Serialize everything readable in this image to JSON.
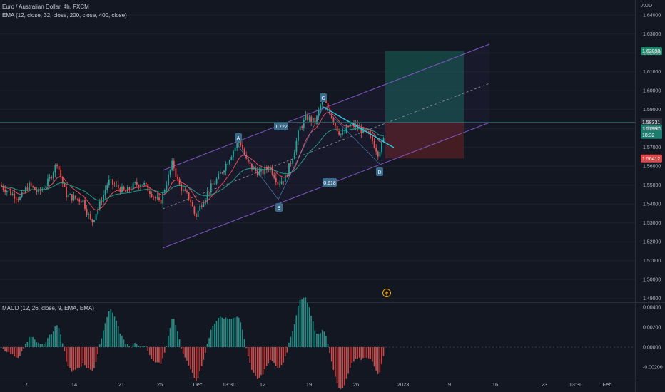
{
  "header": {
    "symbol_line": "Euro / Australian Dollar, 4h, FXCM",
    "ema_line": "EMA (12, close, 32, close, 200, close, 400, close)",
    "currency": "AUD"
  },
  "macd": {
    "legend": "MACD (12, 26, close, 9, EMA, EMA)",
    "ticks": [
      "0.00400",
      "0.00200",
      "0.00000",
      "-0.00200"
    ]
  },
  "chart_data": {
    "type": "candlestick",
    "symbol": "EURAUD",
    "timeframe": "4h",
    "y_ticks": [
      "1.64000",
      "1.63000",
      "1.62000",
      "1.61000",
      "1.60000",
      "1.59000",
      "1.58000",
      "1.57000",
      "1.56000",
      "1.55000",
      "1.54000",
      "1.53000",
      "1.52000",
      "1.51000",
      "1.50000",
      "1.49000"
    ],
    "ylim": [
      1.488,
      1.648
    ],
    "x_ticks": [
      "7",
      "14",
      "21",
      "25",
      "Dec",
      "13:30",
      "12",
      "19",
      "26",
      "2023",
      "9",
      "16",
      "23",
      "13:30",
      "Feb"
    ],
    "price_path": [
      [
        0,
        1.55
      ],
      [
        14,
        1.546
      ],
      [
        28,
        1.543
      ],
      [
        40,
        1.55
      ],
      [
        54,
        1.546
      ],
      [
        68,
        1.552
      ],
      [
        80,
        1.562
      ],
      [
        92,
        1.545
      ],
      [
        104,
        1.543
      ],
      [
        116,
        1.542
      ],
      [
        128,
        1.53
      ],
      [
        140,
        1.54
      ],
      [
        152,
        1.552
      ],
      [
        164,
        1.549
      ],
      [
        176,
        1.546
      ],
      [
        188,
        1.55
      ],
      [
        200,
        1.551
      ],
      [
        212,
        1.546
      ],
      [
        224,
        1.54
      ],
      [
        234,
        1.552
      ],
      [
        242,
        1.562
      ],
      [
        250,
        1.551
      ],
      [
        258,
        1.546
      ],
      [
        266,
        1.543
      ],
      [
        274,
        1.533
      ],
      [
        282,
        1.54
      ],
      [
        294,
        1.548
      ],
      [
        306,
        1.554
      ],
      [
        318,
        1.562
      ],
      [
        328,
        1.569
      ],
      [
        336,
        1.574
      ],
      [
        346,
        1.562
      ],
      [
        356,
        1.558
      ],
      [
        366,
        1.556
      ],
      [
        378,
        1.56
      ],
      [
        390,
        1.551
      ],
      [
        400,
        1.554
      ],
      [
        410,
        1.565
      ],
      [
        420,
        1.58
      ],
      [
        430,
        1.586
      ],
      [
        442,
        1.583
      ],
      [
        452,
        1.596
      ],
      [
        462,
        1.589
      ],
      [
        472,
        1.58
      ],
      [
        480,
        1.576
      ],
      [
        490,
        1.582
      ],
      [
        500,
        1.581
      ],
      [
        510,
        1.578
      ],
      [
        520,
        1.575
      ],
      [
        530,
        1.567
      ],
      [
        540,
        1.576
      ]
    ],
    "current_price": "1.57997",
    "countdown": "18:32",
    "levels": {
      "take_profit": "1.62098",
      "entry": "1.58331",
      "stop_loss": "1.56412"
    },
    "pattern_labels": {
      "A": "A",
      "B": "B",
      "C": "C",
      "D": "D",
      "r1": "1.722",
      "r2": "0.618"
    },
    "series": [
      {
        "name": "EMA 12",
        "color": "#f7525f"
      },
      {
        "name": "EMA 32",
        "color": "#22ab94"
      }
    ],
    "macd_series": {
      "histogram_up_color": "#26a69a",
      "histogram_down_color": "#ef5350"
    }
  },
  "colors": {
    "background": "#131722",
    "up": "#26a69a",
    "down": "#ef5350",
    "channel": "#7e57c2",
    "trend": "#26c6da",
    "tp_zone": "#164a47",
    "sl_zone": "#4a1e24",
    "tag_bg": "#3a6b8a"
  },
  "icons": {
    "alert": "lightning-icon"
  }
}
